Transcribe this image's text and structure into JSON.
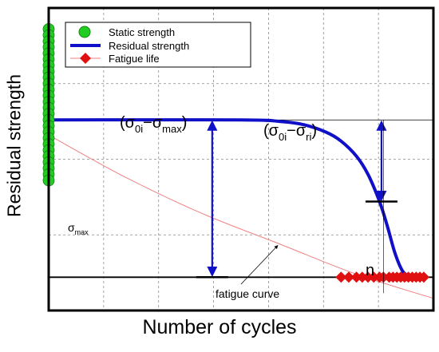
{
  "chart_data": {
    "type": "line",
    "xlabel": "Number of cycles",
    "ylabel": "Residual strength",
    "grid": true,
    "legend_placement": "top-left",
    "legend": [
      {
        "label": "Static strength",
        "marker": "circle",
        "color": "#22cc22"
      },
      {
        "label": "Residual strength",
        "marker": "line",
        "color": "#1010c8"
      },
      {
        "label": "Fatigue life",
        "marker": "diamond",
        "color": "#e01010"
      }
    ],
    "xlim": [
      0,
      1
    ],
    "ylim": [
      0,
      1
    ],
    "levels": {
      "sigma_0i": 0.63,
      "sigma_max": 0.11,
      "sigma_ri": 0.36
    },
    "series": [
      {
        "name": "Residual strength",
        "color": "#1010c8",
        "x": [
          0,
          0.5,
          0.6,
          0.66,
          0.72,
          0.76,
          0.8,
          0.83,
          0.86,
          0.88,
          0.9,
          0.92,
          0.94
        ],
        "y": [
          0.63,
          0.63,
          0.625,
          0.615,
          0.59,
          0.56,
          0.51,
          0.45,
          0.36,
          0.28,
          0.19,
          0.13,
          0.11
        ]
      },
      {
        "name": "fatigue curve",
        "color": "#f08080",
        "x": [
          0,
          0.2,
          0.4,
          0.6,
          0.8,
          1.0
        ],
        "y": [
          0.58,
          0.44,
          0.32,
          0.22,
          0.12,
          0.04
        ]
      }
    ],
    "static_strength_points": [
      0.93,
      0.91,
      0.89,
      0.87,
      0.85,
      0.83,
      0.81,
      0.79,
      0.77,
      0.75,
      0.73,
      0.71,
      0.69,
      0.67,
      0.65,
      0.63,
      0.61,
      0.59,
      0.57,
      0.55,
      0.53,
      0.51,
      0.49,
      0.47,
      0.45,
      0.43
    ],
    "fatigue_life_points": [
      0.76,
      0.78,
      0.8,
      0.815,
      0.83,
      0.845,
      0.86,
      0.87,
      0.885,
      0.895,
      0.905,
      0.915,
      0.925,
      0.935,
      0.945,
      0.955,
      0.965,
      0.975
    ],
    "n_value": 0.87,
    "annotations": {
      "diff_max": {
        "text_sigma": "σ",
        "sub_0i": "0i",
        "dash": "−σ",
        "sub_max": "max",
        "open": "(",
        "close": ")"
      },
      "diff_ri": {
        "text_sigma": "σ",
        "sub_0i": "0i",
        "dash": "−σ",
        "sub_ri": "ri",
        "open": "(",
        "close": ")"
      },
      "sigma_max_label": {
        "sigma": "σ",
        "sub": "max"
      },
      "fatigue_curve_label": "fatigue curve",
      "n_label": "n"
    }
  }
}
